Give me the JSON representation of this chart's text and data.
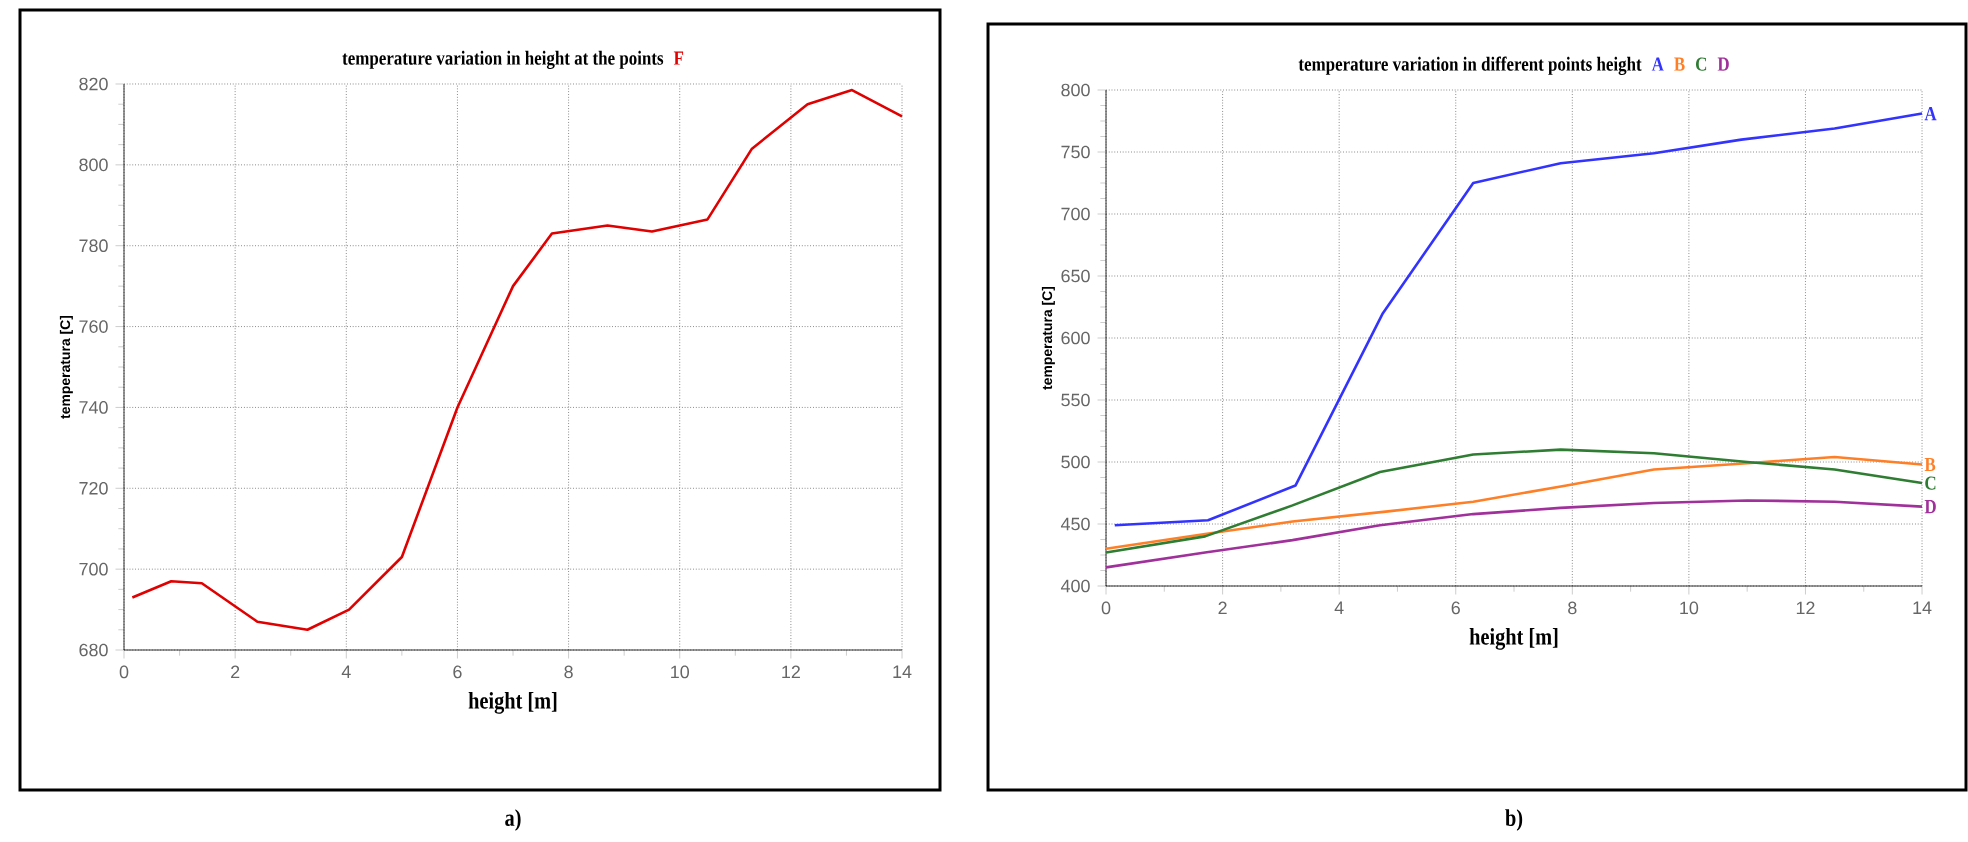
{
  "chart_data": [
    {
      "type": "line",
      "title": "temperature variation in height at the points",
      "xlabel": "height [m]",
      "ylabel": "temperatura [C]",
      "annotations": [
        "a)"
      ],
      "series": [
        {
          "name": "F",
          "color": "#e00000",
          "x": [
            0.15,
            0.85,
            1.4,
            2.4,
            3.3,
            4.05,
            5,
            6,
            7,
            7.7,
            8.7,
            9.5,
            10.5,
            11.3,
            12.3,
            13.1,
            14
          ],
          "values": [
            693,
            697,
            696.5,
            687,
            685,
            690,
            703,
            740,
            770,
            783,
            785,
            783.5,
            786.5,
            804,
            815,
            818.5,
            812
          ]
        }
      ],
      "xlim": [
        0,
        14
      ],
      "ylim": [
        680,
        820
      ],
      "xticks": [
        0,
        2,
        4,
        6,
        8,
        10,
        12,
        14
      ],
      "yticks": [
        680,
        700,
        720,
        740,
        760,
        780,
        800,
        820
      ],
      "grid": true,
      "legend": "top"
    },
    {
      "type": "line",
      "title": "temperature variation in different points height",
      "xlabel": "height [m]",
      "ylabel": "temperatura [C]",
      "annotations": [
        "b)"
      ],
      "series": [
        {
          "name": "A",
          "color": "#3333ff",
          "x": [
            0.15,
            1.75,
            3.25,
            4.75,
            6.3,
            7.8,
            9.4,
            10.9,
            12.5,
            14
          ],
          "values": [
            449,
            453,
            481,
            620,
            725,
            741,
            749,
            760,
            769,
            781
          ]
        },
        {
          "name": "B",
          "color": "#ff7f27",
          "x": [
            0,
            1.7,
            3.2,
            4.8,
            6.3,
            7.9,
            9.4,
            11,
            12.5,
            14
          ],
          "values": [
            430,
            442,
            452,
            460,
            468,
            481,
            494,
            499,
            504,
            498
          ]
        },
        {
          "name": "C",
          "color": "#2e7d32",
          "x": [
            0,
            1.7,
            3.2,
            4.7,
            6.3,
            7.8,
            9.4,
            11,
            12.5,
            14
          ],
          "values": [
            427,
            440,
            465,
            492,
            506,
            510,
            507,
            500,
            494,
            483
          ]
        },
        {
          "name": "D",
          "color": "#a0309a",
          "x": [
            0,
            1.7,
            3.2,
            4.7,
            6.3,
            7.8,
            9.4,
            11,
            12.5,
            14
          ],
          "values": [
            415,
            427,
            437,
            449,
            458,
            463,
            467,
            469,
            468,
            464
          ]
        }
      ],
      "xlim": [
        0,
        14
      ],
      "ylim": [
        400,
        800
      ],
      "xticks": [
        0,
        2,
        4,
        6,
        8,
        10,
        12,
        14
      ],
      "yticks": [
        400,
        450,
        500,
        550,
        600,
        650,
        700,
        750,
        800
      ],
      "grid": true,
      "legend": "top"
    }
  ]
}
